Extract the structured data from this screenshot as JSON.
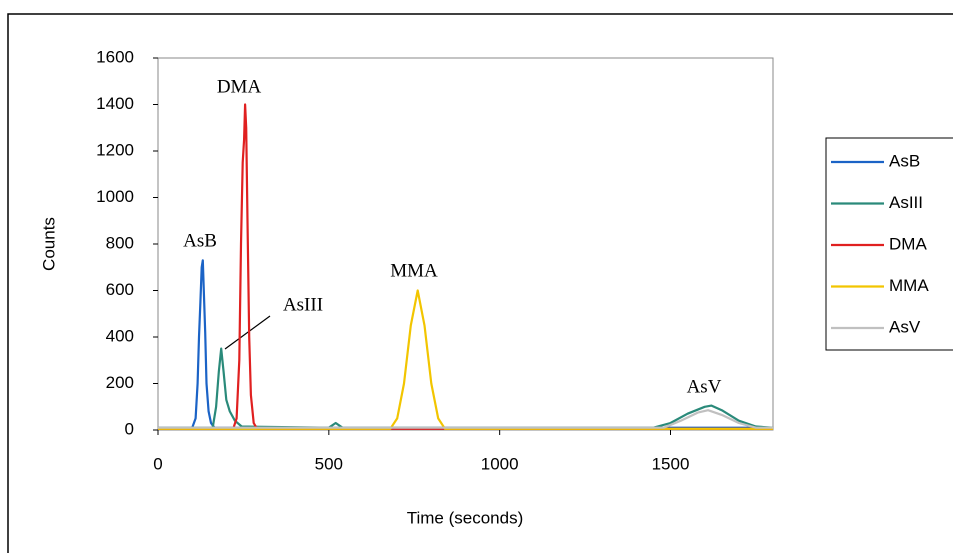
{
  "chart_data": {
    "type": "line",
    "title": null,
    "xlabel": "Time (seconds)",
    "ylabel": "Counts",
    "xlim": [
      0,
      1800
    ],
    "xticks": [
      0,
      500,
      1000,
      1500
    ],
    "ylim": [
      0,
      1600
    ],
    "yticks": [
      0,
      200,
      400,
      600,
      800,
      1000,
      1200,
      1400,
      1600
    ],
    "legend": "right",
    "annotations": [
      "DMA",
      "AsB",
      "AsIII",
      "MMA",
      "AsV"
    ],
    "series": [
      {
        "name": "AsB",
        "color": "#1b63c6",
        "x": [
          0,
          100,
          110,
          116,
          120,
          124,
          128,
          131,
          134,
          138,
          142,
          148,
          155,
          165,
          1800
        ],
        "values": [
          10,
          10,
          50,
          200,
          400,
          550,
          700,
          730,
          600,
          420,
          200,
          80,
          30,
          10,
          10
        ]
      },
      {
        "name": "AsIII",
        "color": "#2a8a7a",
        "x": [
          0,
          160,
          170,
          178,
          185,
          192,
          200,
          210,
          225,
          245,
          500,
          520,
          540,
          1450,
          1500,
          1550,
          1600,
          1620,
          1650,
          1700,
          1750,
          1800
        ],
        "values": [
          10,
          10,
          100,
          250,
          350,
          250,
          130,
          80,
          40,
          15,
          10,
          30,
          10,
          10,
          30,
          70,
          100,
          105,
          85,
          40,
          15,
          10
        ]
      },
      {
        "name": "DMA",
        "color": "#e02020",
        "x": [
          0,
          220,
          230,
          238,
          243,
          248,
          252,
          255,
          258,
          262,
          267,
          272,
          280,
          290,
          1800
        ],
        "values": [
          5,
          5,
          50,
          300,
          800,
          1150,
          1250,
          1400,
          1300,
          900,
          400,
          150,
          30,
          5,
          5
        ]
      },
      {
        "name": "MMA",
        "color": "#f2c500",
        "x": [
          0,
          680,
          700,
          720,
          740,
          760,
          780,
          800,
          820,
          840,
          1800
        ],
        "values": [
          5,
          5,
          50,
          200,
          450,
          600,
          450,
          200,
          50,
          5,
          5
        ]
      },
      {
        "name": "AsV",
        "color": "#c0c0c0",
        "x": [
          0,
          1480,
          1530,
          1580,
          1610,
          1650,
          1700,
          1750,
          1800
        ],
        "values": [
          10,
          10,
          40,
          75,
          85,
          65,
          30,
          10,
          10
        ]
      }
    ]
  }
}
